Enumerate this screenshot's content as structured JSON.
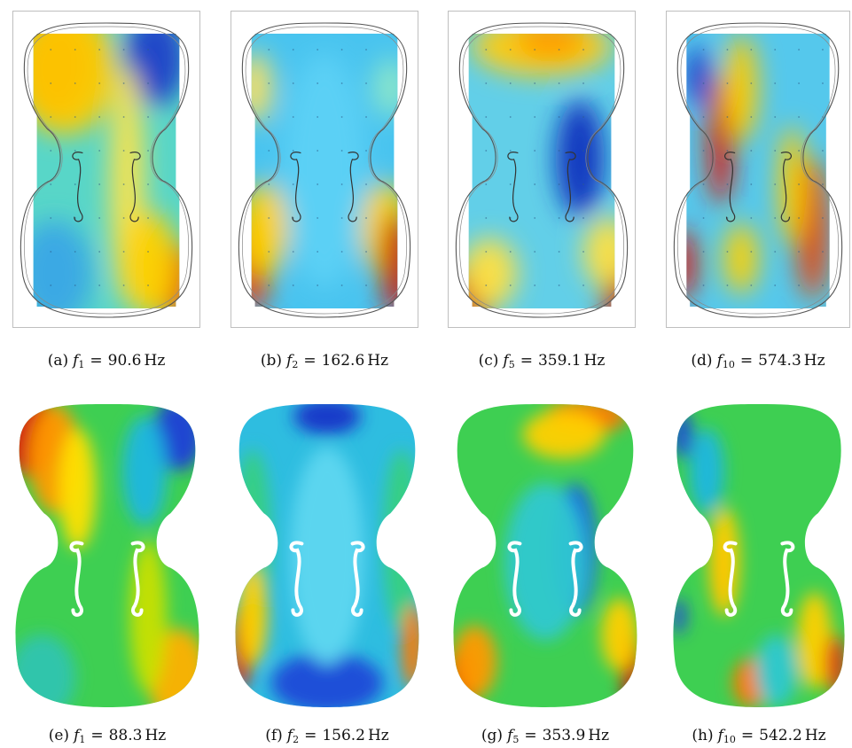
{
  "figure": {
    "row1": [
      {
        "label": "(a)",
        "symbol": "f",
        "index": "1",
        "value": "90.6",
        "unit": "Hz",
        "colors": {
          "base": "#58d6c8",
          "blobs": [
            [
              "#c8000b",
              0.2,
              0.14,
              0.22,
              0.18
            ],
            [
              "#ffcc00",
              0.26,
              0.16,
              0.3,
              0.22
            ],
            [
              "#1a3fc8",
              0.78,
              0.12,
              0.18,
              0.16
            ],
            [
              "#ffe44a",
              0.62,
              0.55,
              0.1,
              0.4
            ],
            [
              "#e24a10",
              0.9,
              0.88,
              0.14,
              0.13
            ],
            [
              "#ffd200",
              0.75,
              0.82,
              0.16,
              0.18
            ],
            [
              "#3aa6e6",
              0.2,
              0.85,
              0.22,
              0.18
            ]
          ]
        }
      },
      {
        "label": "(b)",
        "symbol": "f",
        "index": "2",
        "value": "162.6",
        "unit": "Hz",
        "colors": {
          "base": "#49c4ef",
          "blobs": [
            [
              "#e63a10",
              0.08,
              0.8,
              0.12,
              0.18
            ],
            [
              "#ffd400",
              0.15,
              0.7,
              0.14,
              0.16
            ],
            [
              "#ffd400",
              0.85,
              0.7,
              0.14,
              0.16
            ],
            [
              "#c8200b",
              0.92,
              0.82,
              0.1,
              0.18
            ],
            [
              "#ffe060",
              0.1,
              0.22,
              0.1,
              0.12
            ],
            [
              "#8ee8c8",
              0.88,
              0.22,
              0.1,
              0.1
            ],
            [
              "#5cd1f5",
              0.5,
              0.5,
              0.24,
              0.4
            ]
          ]
        }
      },
      {
        "label": "(c)",
        "symbol": "f",
        "index": "5",
        "value": "359.1",
        "unit": "Hz",
        "colors": {
          "base": "#62cfe8",
          "blobs": [
            [
              "#ffcc10",
              0.5,
              0.08,
              0.4,
              0.1
            ],
            [
              "#ff9a00",
              0.55,
              0.06,
              0.2,
              0.06
            ],
            [
              "#0a2fbe",
              0.72,
              0.46,
              0.14,
              0.2
            ],
            [
              "#c8000b",
              0.06,
              0.95,
              0.14,
              0.12
            ],
            [
              "#c8000b",
              0.95,
              0.92,
              0.1,
              0.12
            ],
            [
              "#ffe040",
              0.88,
              0.78,
              0.14,
              0.12
            ],
            [
              "#ffe040",
              0.2,
              0.85,
              0.16,
              0.12
            ]
          ]
        }
      },
      {
        "label": "(d)",
        "symbol": "f",
        "index": "10",
        "value": "574.3",
        "unit": "Hz",
        "colors": {
          "base": "#55c8ec",
          "blobs": [
            [
              "#d8200b",
              0.28,
              0.4,
              0.08,
              0.22
            ],
            [
              "#ffcc00",
              0.4,
              0.22,
              0.1,
              0.18
            ],
            [
              "#1a3fc8",
              0.15,
              0.18,
              0.08,
              0.1
            ],
            [
              "#e24a10",
              0.82,
              0.7,
              0.1,
              0.24
            ],
            [
              "#ffcc00",
              0.7,
              0.55,
              0.08,
              0.2
            ],
            [
              "#d8200b",
              0.06,
              0.82,
              0.08,
              0.12
            ],
            [
              "#ffd200",
              0.4,
              0.8,
              0.1,
              0.12
            ]
          ]
        }
      }
    ],
    "row2": [
      {
        "label": "(e)",
        "symbol": "f",
        "index": "1",
        "value": "88.3",
        "unit": "Hz",
        "colors": {
          "base": "#3ecf52",
          "blobs": [
            [
              "#d8100b",
              0.08,
              0.1,
              0.14,
              0.14
            ],
            [
              "#ff9a00",
              0.22,
              0.18,
              0.14,
              0.18
            ],
            [
              "#ffe000",
              0.34,
              0.28,
              0.1,
              0.2
            ],
            [
              "#1a3fd8",
              0.88,
              0.1,
              0.14,
              0.12
            ],
            [
              "#1fb6e0",
              0.7,
              0.22,
              0.12,
              0.18
            ],
            [
              "#2ec4b0",
              0.15,
              0.9,
              0.18,
              0.14
            ],
            [
              "#ffb000",
              0.88,
              0.9,
              0.16,
              0.16
            ],
            [
              "#c8e000",
              0.72,
              0.7,
              0.1,
              0.25
            ]
          ]
        }
      },
      {
        "label": "(f)",
        "symbol": "f",
        "index": "2",
        "value": "156.2",
        "unit": "Hz",
        "colors": {
          "base": "#2ebde0",
          "blobs": [
            [
              "#1433c8",
              0.5,
              0.04,
              0.18,
              0.06
            ],
            [
              "#1a48d8",
              0.5,
              0.92,
              0.3,
              0.1
            ],
            [
              "#37d080",
              0.1,
              0.45,
              0.1,
              0.3
            ],
            [
              "#37d080",
              0.9,
              0.45,
              0.1,
              0.3
            ],
            [
              "#e0300b",
              0.04,
              0.8,
              0.06,
              0.14
            ],
            [
              "#ffd000",
              0.1,
              0.7,
              0.08,
              0.16
            ],
            [
              "#ff7a00",
              0.96,
              0.8,
              0.06,
              0.14
            ],
            [
              "#5ed7f0",
              0.5,
              0.5,
              0.2,
              0.36
            ]
          ]
        }
      },
      {
        "label": "(g)",
        "symbol": "f",
        "index": "5",
        "value": "353.9",
        "unit": "Hz",
        "colors": {
          "base": "#3ecf52",
          "blobs": [
            [
              "#ff7a00",
              0.72,
              0.04,
              0.22,
              0.06
            ],
            [
              "#ffd000",
              0.6,
              0.1,
              0.22,
              0.08
            ],
            [
              "#0a1ea8",
              0.66,
              0.44,
              0.07,
              0.16
            ],
            [
              "#1a6ae0",
              0.66,
              0.48,
              0.12,
              0.22
            ],
            [
              "#2ec8d0",
              0.5,
              0.52,
              0.22,
              0.26
            ],
            [
              "#d8100b",
              0.04,
              0.92,
              0.08,
              0.12
            ],
            [
              "#ff9a00",
              0.12,
              0.85,
              0.12,
              0.12
            ],
            [
              "#c8100b",
              0.96,
              0.86,
              0.06,
              0.12
            ],
            [
              "#ffd000",
              0.9,
              0.76,
              0.1,
              0.12
            ]
          ]
        }
      },
      {
        "label": "(h)",
        "symbol": "f",
        "index": "10",
        "value": "542.2",
        "unit": "Hz",
        "colors": {
          "base": "#3ecf52",
          "blobs": [
            [
              "#d8100b",
              0.28,
              0.56,
              0.05,
              0.12
            ],
            [
              "#ffd000",
              0.3,
              0.52,
              0.09,
              0.18
            ],
            [
              "#1a48d8",
              0.06,
              0.1,
              0.06,
              0.08
            ],
            [
              "#1fb6e0",
              0.2,
              0.22,
              0.1,
              0.14
            ],
            [
              "#1a48d8",
              0.04,
              0.7,
              0.04,
              0.06
            ],
            [
              "#ff7a00",
              0.45,
              0.92,
              0.1,
              0.08
            ],
            [
              "#ffd000",
              0.82,
              0.78,
              0.1,
              0.16
            ],
            [
              "#e0300b",
              0.94,
              0.86,
              0.06,
              0.1
            ],
            [
              "#2ec8d0",
              0.6,
              0.88,
              0.12,
              0.12
            ]
          ]
        }
      }
    ]
  }
}
